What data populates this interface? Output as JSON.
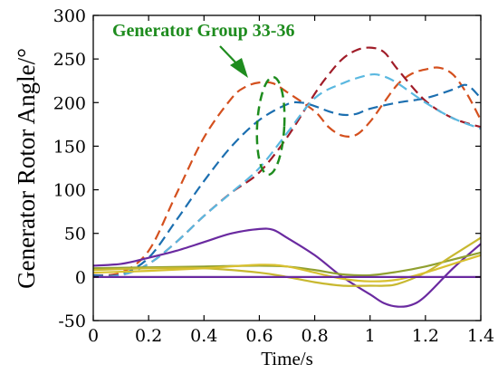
{
  "chart_data": {
    "type": "line",
    "xlabel": "Time/s",
    "ylabel": "Generator Rotor Angle/°",
    "xlim": [
      0,
      1.4
    ],
    "ylim": [
      -50,
      300
    ],
    "xticks": [
      0,
      0.2,
      0.4,
      0.6,
      0.8,
      1,
      1.2,
      1.4
    ],
    "xtick_labels": [
      "0",
      "0.2",
      "0.4",
      "0.6",
      "0.8",
      "1",
      "1.2",
      "1.4"
    ],
    "yticks": [
      -50,
      0,
      50,
      100,
      150,
      200,
      250,
      300
    ],
    "ytick_labels": [
      "-50",
      "0",
      "50",
      "100",
      "150",
      "200",
      "250",
      "300"
    ],
    "grid": false,
    "annotation": {
      "text": "Generator Group 33-36",
      "color": "#1e8c1e",
      "target_x": 0.62,
      "target_y": 225
    },
    "series": [
      {
        "color": "#d4501e",
        "dashed": true,
        "x": [
          0,
          0.1,
          0.2,
          0.3,
          0.4,
          0.5,
          0.55,
          0.6,
          0.65,
          0.7,
          0.8,
          0.85,
          0.9,
          0.95,
          1,
          1.05,
          1.1,
          1.15,
          1.2,
          1.25,
          1.3,
          1.35,
          1.4
        ],
        "y": [
          2,
          5,
          30,
          95,
          160,
          205,
          218,
          223,
          222,
          212,
          190,
          172,
          162,
          163,
          178,
          200,
          221,
          233,
          238,
          240,
          232,
          210,
          180
        ]
      },
      {
        "color": "#1c6fb0",
        "dashed": true,
        "x": [
          0,
          0.1,
          0.2,
          0.3,
          0.4,
          0.5,
          0.6,
          0.7,
          0.75,
          0.8,
          0.85,
          0.9,
          0.95,
          1,
          1.1,
          1.2,
          1.3,
          1.35,
          1.4
        ],
        "y": [
          2,
          3,
          22,
          65,
          110,
          150,
          180,
          198,
          200,
          196,
          190,
          186,
          187,
          193,
          200,
          205,
          215,
          220,
          205
        ]
      },
      {
        "color": "#a01c28",
        "dashed": true,
        "x": [
          0,
          0.1,
          0.2,
          0.3,
          0.4,
          0.5,
          0.6,
          0.7,
          0.8,
          0.85,
          0.9,
          0.95,
          1,
          1.05,
          1.1,
          1.2,
          1.3,
          1.4
        ],
        "y": [
          0,
          2,
          15,
          40,
          70,
          97,
          120,
          160,
          210,
          232,
          250,
          260,
          263,
          258,
          238,
          202,
          182,
          172
        ]
      },
      {
        "color": "#5ab8e0",
        "dashed": true,
        "x": [
          0,
          0.1,
          0.2,
          0.3,
          0.4,
          0.5,
          0.6,
          0.7,
          0.8,
          0.9,
          1,
          1.05,
          1.1,
          1.2,
          1.3,
          1.4
        ],
        "y": [
          0,
          2,
          15,
          40,
          70,
          97,
          125,
          165,
          205,
          222,
          232,
          230,
          222,
          200,
          182,
          170
        ]
      },
      {
        "color": "#6a2aa0",
        "dashed": false,
        "x": [
          0,
          0.1,
          0.2,
          0.3,
          0.4,
          0.5,
          0.6,
          0.65,
          0.7,
          0.8,
          0.9,
          1,
          1.05,
          1.1,
          1.15,
          1.2,
          1.3,
          1.4
        ],
        "y": [
          13,
          15,
          22,
          30,
          40,
          50,
          55,
          54,
          45,
          25,
          0,
          -20,
          -30,
          -34,
          -32,
          -22,
          10,
          38
        ]
      },
      {
        "color": "#90a030",
        "dashed": false,
        "x": [
          0,
          0.2,
          0.4,
          0.6,
          0.7,
          0.8,
          0.9,
          1,
          1.1,
          1.2,
          1.3,
          1.4
        ],
        "y": [
          10,
          11,
          12,
          13,
          12,
          8,
          3,
          2,
          6,
          12,
          20,
          28
        ]
      },
      {
        "color": "#c8b830",
        "dashed": false,
        "x": [
          0,
          0.2,
          0.4,
          0.6,
          0.7,
          0.8,
          0.9,
          1,
          1.05,
          1.1,
          1.2,
          1.3,
          1.4
        ],
        "y": [
          8,
          10,
          10,
          5,
          0,
          -6,
          -10,
          -10,
          -10,
          -8,
          5,
          25,
          45
        ]
      },
      {
        "color": "#d8c030",
        "dashed": false,
        "x": [
          0,
          0.2,
          0.4,
          0.6,
          0.7,
          0.8,
          0.9,
          1,
          1.1,
          1.2,
          1.3,
          1.4
        ],
        "y": [
          5,
          7,
          10,
          14,
          12,
          5,
          -2,
          -5,
          -3,
          5,
          15,
          25
        ]
      },
      {
        "color": "#6a2aa0",
        "dashed": false,
        "x": [
          0,
          0.5,
          1,
          1.4
        ],
        "y": [
          0,
          0,
          0,
          0
        ]
      }
    ]
  }
}
